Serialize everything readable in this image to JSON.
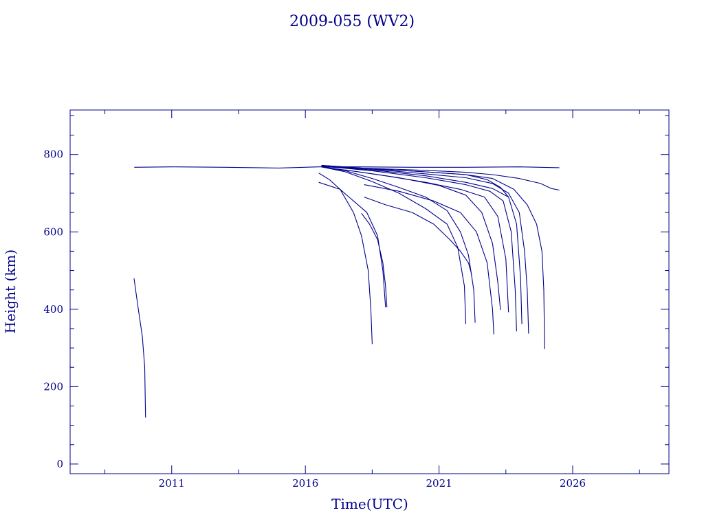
{
  "chart_data": {
    "type": "line",
    "title": "2009-055 (WV2)",
    "xlabel": "Time(UTC)",
    "ylabel": "Height (km)",
    "xlim": [
      2007.2,
      2029.6
    ],
    "ylim": [
      -25,
      915
    ],
    "x_ticks": [
      2011,
      2016,
      2021,
      2026
    ],
    "y_ticks": [
      0,
      200,
      400,
      600,
      800
    ],
    "grid": false,
    "line_color": "#00008b",
    "series": [
      {
        "x": [
          2009.6,
          2011.0,
          2013.0,
          2015.0,
          2016.5,
          2018.0,
          2020.0,
          2022.0,
          2024.0,
          2025.5
        ],
        "y": [
          767,
          768,
          767,
          765,
          768,
          768,
          767,
          767,
          768,
          766
        ]
      },
      {
        "x": [
          2009.59,
          2009.61,
          2009.75,
          2009.9,
          2009.99,
          2010.02
        ],
        "y": [
          480,
          470,
          400,
          330,
          250,
          120
        ]
      },
      {
        "x": [
          2016.5,
          2017.3,
          2017.8,
          2018.1,
          2018.35,
          2018.45,
          2018.5
        ],
        "y": [
          728,
          710,
          650,
          590,
          500,
          400,
          310
        ]
      },
      {
        "x": [
          2016.5,
          2016.9,
          2017.3,
          2017.8,
          2018.3,
          2018.7,
          2018.9,
          2019.0
        ],
        "y": [
          752,
          735,
          710,
          680,
          650,
          590,
          500,
          405
        ]
      },
      {
        "x": [
          2018.1,
          2018.4,
          2018.7,
          2018.9,
          2019.0,
          2019.05
        ],
        "y": [
          648,
          620,
          580,
          520,
          460,
          405
        ]
      },
      {
        "x": [
          2016.6,
          2017.5,
          2018.5,
          2019.5,
          2020.5,
          2021.3,
          2021.7,
          2021.95,
          2022.0
        ],
        "y": [
          768,
          755,
          730,
          700,
          660,
          620,
          560,
          460,
          362
        ]
      },
      {
        "x": [
          2016.6,
          2017.5,
          2018.5,
          2019.5,
          2020.5,
          2021.3,
          2021.8,
          2022.1,
          2022.3,
          2022.35
        ],
        "y": [
          768,
          758,
          738,
          715,
          690,
          655,
          600,
          540,
          450,
          365
        ]
      },
      {
        "x": [
          2018.2,
          2019.0,
          2020.0,
          2020.8,
          2021.4,
          2021.8,
          2022.1,
          2022.2
        ],
        "y": [
          690,
          670,
          650,
          620,
          580,
          550,
          520,
          495
        ]
      },
      {
        "x": [
          2018.2,
          2019.5,
          2020.8,
          2021.8,
          2022.4,
          2022.8,
          2023.0,
          2023.05
        ],
        "y": [
          722,
          705,
          680,
          650,
          600,
          520,
          400,
          335
        ]
      },
      {
        "x": [
          2016.6,
          2018.0,
          2019.5,
          2021.0,
          2022.0,
          2022.6,
          2023.0,
          2023.2,
          2023.3
        ],
        "y": [
          768,
          755,
          740,
          720,
          695,
          650,
          570,
          470,
          398
        ]
      },
      {
        "x": [
          2017.5,
          2019.0,
          2020.5,
          2021.8,
          2022.7,
          2023.2,
          2023.5,
          2023.6
        ],
        "y": [
          760,
          745,
          728,
          710,
          690,
          640,
          530,
          392
        ]
      },
      {
        "x": [
          2016.6,
          2018.5,
          2020.5,
          2022.0,
          2022.9,
          2023.4,
          2023.7,
          2023.85,
          2023.9
        ],
        "y": [
          770,
          758,
          740,
          722,
          705,
          680,
          600,
          450,
          343
        ]
      },
      {
        "x": [
          2016.6,
          2018.5,
          2020.5,
          2022.0,
          2023.0,
          2023.6,
          2023.9,
          2024.05,
          2024.1
        ],
        "y": [
          770,
          760,
          745,
          728,
          712,
          690,
          620,
          480,
          362
        ]
      },
      {
        "x": [
          2016.6,
          2018.5,
          2020.5,
          2022.0,
          2023.0,
          2023.6,
          2024.0,
          2024.2,
          2024.3,
          2024.35
        ],
        "y": [
          772,
          762,
          750,
          740,
          725,
          700,
          650,
          550,
          450,
          337
        ]
      },
      {
        "x": [
          2016.6,
          2018.5,
          2020.5,
          2022.0,
          2023.0,
          2023.8,
          2024.3,
          2024.65,
          2024.85,
          2024.92,
          2024.95
        ],
        "y": [
          772,
          763,
          755,
          748,
          738,
          710,
          670,
          620,
          550,
          450,
          297
        ]
      },
      {
        "x": [
          2016.6,
          2018.5,
          2020.5,
          2022.0,
          2022.8,
          2023.3,
          2023.6
        ],
        "y": [
          772,
          763,
          755,
          748,
          735,
          715,
          690
        ]
      },
      {
        "x": [
          2016.6,
          2018.5,
          2020.5,
          2022.0,
          2023.0,
          2024.0,
          2024.8,
          2025.2,
          2025.5
        ],
        "y": [
          768,
          764,
          759,
          754,
          748,
          738,
          725,
          712,
          708
        ]
      }
    ]
  }
}
